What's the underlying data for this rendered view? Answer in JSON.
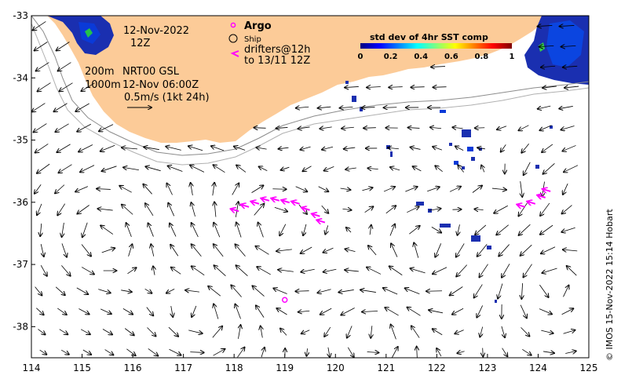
{
  "map": {
    "date": "12-Nov-2022",
    "hour": "12Z",
    "isobath_shallow": "200m",
    "isobath_deep": "1000m",
    "product": "NRT00 GSL",
    "current_time": "12-Nov 06:00Z",
    "scale_label": "0.5m/s (1kt 24h)",
    "x_ticks": [
      "114",
      "115",
      "116",
      "117",
      "118",
      "119",
      "120",
      "121",
      "122",
      "123",
      "124",
      "125"
    ],
    "y_ticks": [
      "-33",
      "-34",
      "-35",
      "-36",
      "-37",
      "-38"
    ],
    "xlim": [
      114,
      125
    ],
    "ylim": [
      -38.5,
      -33
    ],
    "land_color": "#fccb98"
  },
  "legend": {
    "argo_label": "Argo",
    "ship_label": "Ship",
    "drifters_label": "drifters@12h",
    "drifters_to": "to 13/11 12Z",
    "argo_color": "#ff00ff"
  },
  "colorbar": {
    "title": "std dev of 4hr SST comp",
    "ticks": [
      "0",
      "0.2",
      "0.4",
      "0.6",
      "0.8",
      "1"
    ],
    "colors": [
      "#00007f",
      "#0000ff",
      "#007fff",
      "#00ffff",
      "#7fff7f",
      "#ffff00",
      "#ff7f00",
      "#ff0000",
      "#7f0000"
    ]
  },
  "features": {
    "argo_float": {
      "lon": 119.0,
      "lat": -37.57
    },
    "drifters": [
      {
        "lon": 119.7,
        "lat": -36.3
      },
      {
        "lon": 119.6,
        "lat": -36.2
      },
      {
        "lon": 119.4,
        "lat": -36.1
      },
      {
        "lon": 119.2,
        "lat": -36.0
      },
      {
        "lon": 119.0,
        "lat": -35.98
      },
      {
        "lon": 118.8,
        "lat": -35.95
      },
      {
        "lon": 118.6,
        "lat": -35.95
      },
      {
        "lon": 118.4,
        "lat": -36.0
      },
      {
        "lon": 118.2,
        "lat": -36.05
      },
      {
        "lon": 118.0,
        "lat": -36.12
      },
      {
        "lon": 123.65,
        "lat": -36.05
      },
      {
        "lon": 123.85,
        "lat": -36.0
      },
      {
        "lon": 124.05,
        "lat": -35.9
      },
      {
        "lon": 124.15,
        "lat": -35.8
      }
    ]
  },
  "credit": "© IMOS 15-Nov-2022 15:14 Hobart"
}
